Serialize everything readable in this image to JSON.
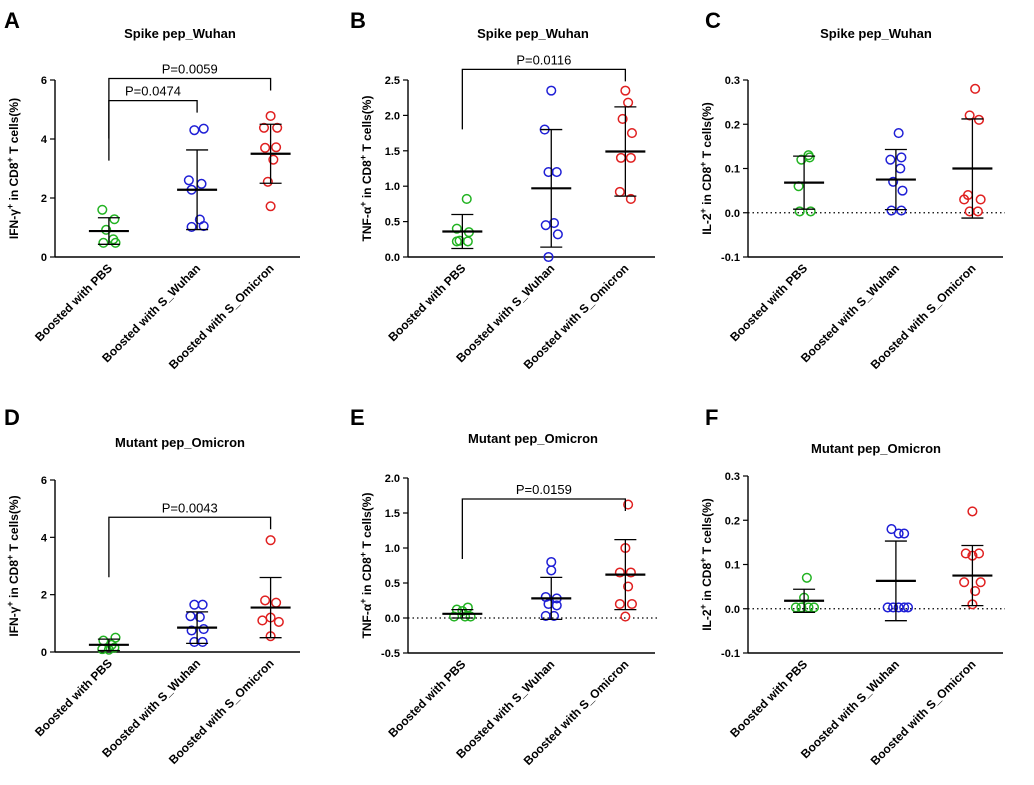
{
  "colors": {
    "PBS": "#22b322",
    "Wuhan": "#1f1fd6",
    "Omicron": "#e02020",
    "axis": "#000000"
  },
  "chart_data": [
    {
      "type": "scatter",
      "panel": "A",
      "title": "Spike pep_Wuhan",
      "ylabel": "IFN-γ⁺ in CD8⁺ T cells(%)",
      "ylim": [
        0,
        6
      ],
      "yticks": [
        0,
        2,
        4,
        6
      ],
      "yticklabels": [
        "0",
        "2",
        "4",
        "6"
      ],
      "zero_line": false,
      "categories": [
        "Boosted with PBS",
        "Boosted with S_Wuhan",
        "Boosted with S_Omicron"
      ],
      "series": [
        {
          "name": "PBS",
          "points": [
            [
              -0.12,
              1.6
            ],
            [
              0.1,
              1.28
            ],
            [
              -0.05,
              0.92
            ],
            [
              0.12,
              0.48
            ],
            [
              -0.1,
              0.48
            ],
            [
              0.08,
              0.6
            ]
          ],
          "mean": 0.88,
          "sd": 0.45
        },
        {
          "name": "Wuhan",
          "points": [
            [
              -0.05,
              4.3
            ],
            [
              0.12,
              4.35
            ],
            [
              -0.15,
              2.6
            ],
            [
              0.08,
              2.48
            ],
            [
              -0.1,
              2.28
            ],
            [
              0.05,
              1.27
            ],
            [
              -0.1,
              1.02
            ],
            [
              0.12,
              1.05
            ]
          ],
          "mean": 2.28,
          "sd": 1.35
        },
        {
          "name": "Omicron",
          "points": [
            [
              0.0,
              4.78
            ],
            [
              -0.12,
              4.38
            ],
            [
              0.12,
              4.38
            ],
            [
              -0.1,
              3.7
            ],
            [
              0.1,
              3.72
            ],
            [
              0.05,
              3.3
            ],
            [
              -0.05,
              2.55
            ],
            [
              0.0,
              1.72
            ]
          ],
          "mean": 3.5,
          "sd": 1.0
        }
      ],
      "comparisons": [
        {
          "from": 0,
          "to": 1,
          "label": "P=0.0474",
          "y": 5.3
        },
        {
          "from": 0,
          "to": 2,
          "label": "P=0.0059",
          "y": 6.05
        }
      ]
    },
    {
      "type": "scatter",
      "panel": "B",
      "title": "Spike pep_Wuhan",
      "ylabel": "TNF-α⁺ in CD8⁺ T cells(%)",
      "ylim": [
        0,
        2.5
      ],
      "yticks": [
        0,
        0.5,
        1.0,
        1.5,
        2.0,
        2.5
      ],
      "yticklabels": [
        "0.0",
        "0.5",
        "1.0",
        "1.5",
        "2.0",
        "2.5"
      ],
      "zero_line": false,
      "categories": [
        "Boosted with PBS",
        "Boosted with S_Wuhan",
        "Boosted with S_Omicron"
      ],
      "series": [
        {
          "name": "PBS",
          "points": [
            [
              0.08,
              0.82
            ],
            [
              -0.1,
              0.4
            ],
            [
              0.12,
              0.35
            ],
            [
              -0.05,
              0.23
            ],
            [
              0.1,
              0.22
            ],
            [
              -0.1,
              0.22
            ]
          ],
          "mean": 0.36,
          "sd": 0.24
        },
        {
          "name": "Wuhan",
          "points": [
            [
              0.0,
              2.35
            ],
            [
              -0.12,
              1.8
            ],
            [
              -0.05,
              1.2
            ],
            [
              0.1,
              1.2
            ],
            [
              0.05,
              0.48
            ],
            [
              -0.1,
              0.45
            ],
            [
              0.12,
              0.32
            ],
            [
              -0.05,
              0.0
            ]
          ],
          "mean": 0.97,
          "sd": 0.83
        },
        {
          "name": "Omicron",
          "points": [
            [
              0.0,
              2.35
            ],
            [
              0.05,
              2.18
            ],
            [
              -0.05,
              1.95
            ],
            [
              0.12,
              1.75
            ],
            [
              -0.08,
              1.4
            ],
            [
              0.1,
              1.4
            ],
            [
              -0.1,
              0.92
            ],
            [
              0.1,
              0.82
            ]
          ],
          "mean": 1.49,
          "sd": 0.63
        }
      ],
      "comparisons": [
        {
          "from": 0,
          "to": 2,
          "label": "P=0.0116",
          "y": 2.65
        }
      ]
    },
    {
      "type": "scatter",
      "panel": "C",
      "title": "Spike pep_Wuhan",
      "ylabel": "IL-2⁺ in CD8⁺ T cells(%)",
      "ylim": [
        -0.1,
        0.3
      ],
      "yticks": [
        -0.1,
        0.0,
        0.1,
        0.2,
        0.3
      ],
      "yticklabels": [
        "-0.1",
        "0.0",
        "0.1",
        "0.2",
        "0.3"
      ],
      "zero_line": true,
      "categories": [
        "Boosted with PBS",
        "Boosted with S_Wuhan",
        "Boosted with S_Omicron"
      ],
      "series": [
        {
          "name": "PBS",
          "points": [
            [
              0.08,
              0.13
            ],
            [
              -0.05,
              0.12
            ],
            [
              0.1,
              0.125
            ],
            [
              -0.1,
              0.06
            ],
            [
              -0.08,
              0.003
            ],
            [
              0.12,
              0.003
            ]
          ],
          "mean": 0.068,
          "sd": 0.06
        },
        {
          "name": "Wuhan",
          "points": [
            [
              0.05,
              0.18
            ],
            [
              -0.1,
              0.12
            ],
            [
              0.1,
              0.125
            ],
            [
              0.08,
              0.1
            ],
            [
              -0.05,
              0.07
            ],
            [
              0.12,
              0.05
            ],
            [
              -0.08,
              0.005
            ],
            [
              0.1,
              0.005
            ]
          ],
          "mean": 0.075,
          "sd": 0.068
        },
        {
          "name": "Omicron",
          "points": [
            [
              0.05,
              0.28
            ],
            [
              -0.05,
              0.22
            ],
            [
              0.12,
              0.21
            ],
            [
              -0.08,
              0.04
            ],
            [
              0.15,
              0.03
            ],
            [
              -0.15,
              0.03
            ],
            [
              -0.05,
              0.003
            ],
            [
              0.1,
              0.003
            ]
          ],
          "mean": 0.1,
          "sd": 0.112
        }
      ],
      "comparisons": []
    },
    {
      "type": "scatter",
      "panel": "D",
      "title": "Mutant pep_Omicron",
      "ylabel": "IFN-γ⁺ in CD8⁺ T cells(%)",
      "ylim": [
        0,
        6
      ],
      "yticks": [
        0,
        2,
        4,
        6
      ],
      "yticklabels": [
        "0",
        "2",
        "4",
        "6"
      ],
      "zero_line": false,
      "categories": [
        "Boosted with PBS",
        "Boosted with S_Wuhan",
        "Boosted with S_Omicron"
      ],
      "series": [
        {
          "name": "PBS",
          "points": [
            [
              0.12,
              0.5
            ],
            [
              -0.1,
              0.4
            ],
            [
              0.05,
              0.25
            ],
            [
              -0.12,
              0.1
            ],
            [
              0.1,
              0.15
            ],
            [
              0.0,
              0.08
            ]
          ],
          "mean": 0.25,
          "sd": 0.2
        },
        {
          "name": "Wuhan",
          "points": [
            [
              -0.05,
              1.65
            ],
            [
              0.1,
              1.65
            ],
            [
              -0.12,
              1.25
            ],
            [
              0.05,
              1.22
            ],
            [
              0.12,
              0.8
            ],
            [
              -0.1,
              0.75
            ],
            [
              -0.05,
              0.35
            ],
            [
              0.1,
              0.35
            ]
          ],
          "mean": 0.85,
          "sd": 0.55
        },
        {
          "name": "Omicron",
          "points": [
            [
              0.0,
              3.9
            ],
            [
              -0.1,
              1.8
            ],
            [
              0.1,
              1.72
            ],
            [
              0.0,
              1.2
            ],
            [
              -0.15,
              1.1
            ],
            [
              0.15,
              1.05
            ],
            [
              0.0,
              0.55
            ]
          ],
          "mean": 1.55,
          "sd": 1.05
        }
      ],
      "comparisons": [
        {
          "from": 0,
          "to": 2,
          "label": "P=0.0043",
          "y": 4.7
        }
      ]
    },
    {
      "type": "scatter",
      "panel": "E",
      "title": "Mutant pep_Omicron",
      "ylabel": "TNF-α⁺ in CD8⁺ T cells(%)",
      "ylim": [
        -0.5,
        2.0
      ],
      "yticks": [
        -0.5,
        0.0,
        0.5,
        1.0,
        1.5,
        2.0
      ],
      "yticklabels": [
        "-0.5",
        "0.0",
        "0.5",
        "1.0",
        "1.5",
        "2.0"
      ],
      "zero_line": true,
      "categories": [
        "Boosted with PBS",
        "Boosted with S_Wuhan",
        "Boosted with S_Omicron"
      ],
      "series": [
        {
          "name": "PBS",
          "points": [
            [
              -0.1,
              0.12
            ],
            [
              0.1,
              0.15
            ],
            [
              0.0,
              0.1
            ],
            [
              -0.15,
              0.02
            ],
            [
              0.05,
              0.02
            ],
            [
              0.15,
              0.02
            ]
          ],
          "mean": 0.06,
          "sd": 0.06
        },
        {
          "name": "Wuhan",
          "points": [
            [
              0.0,
              0.8
            ],
            [
              0.0,
              0.68
            ],
            [
              -0.1,
              0.3
            ],
            [
              0.1,
              0.28
            ],
            [
              -0.05,
              0.2
            ],
            [
              0.1,
              0.18
            ],
            [
              -0.1,
              0.03
            ],
            [
              0.05,
              0.03
            ]
          ],
          "mean": 0.28,
          "sd": 0.3
        },
        {
          "name": "Omicron",
          "points": [
            [
              0.05,
              1.62
            ],
            [
              0.0,
              1.0
            ],
            [
              -0.1,
              0.65
            ],
            [
              0.1,
              0.65
            ],
            [
              0.05,
              0.45
            ],
            [
              -0.1,
              0.2
            ],
            [
              0.12,
              0.2
            ],
            [
              0.0,
              0.02
            ]
          ],
          "mean": 0.62,
          "sd": 0.5
        }
      ],
      "comparisons": [
        {
          "from": 0,
          "to": 2,
          "label": "P=0.0159",
          "y": 1.7
        }
      ]
    },
    {
      "type": "scatter",
      "panel": "F",
      "title": "Mutant pep_Omicron",
      "ylabel": "IL-2⁺ in CD8⁺ T cells(%)",
      "ylim": [
        -0.1,
        0.3
      ],
      "yticks": [
        -0.1,
        0.0,
        0.1,
        0.2,
        0.3
      ],
      "yticklabels": [
        "-0.1",
        "0.0",
        "0.1",
        "0.2",
        "0.3"
      ],
      "zero_line": true,
      "categories": [
        "Boosted with PBS",
        "Boosted with S_Wuhan",
        "Boosted with S_Omicron"
      ],
      "series": [
        {
          "name": "PBS",
          "points": [
            [
              0.05,
              0.07
            ],
            [
              0.0,
              0.025
            ],
            [
              -0.15,
              0.003
            ],
            [
              -0.05,
              0.003
            ],
            [
              0.08,
              0.003
            ],
            [
              0.18,
              0.003
            ]
          ],
          "mean": 0.018,
          "sd": 0.026
        },
        {
          "name": "Wuhan",
          "points": [
            [
              -0.08,
              0.18
            ],
            [
              0.05,
              0.17
            ],
            [
              0.15,
              0.17
            ],
            [
              -0.15,
              0.003
            ],
            [
              -0.05,
              0.003
            ],
            [
              0.05,
              0.003
            ],
            [
              0.15,
              0.003
            ],
            [
              0.22,
              0.003
            ]
          ],
          "mean": 0.063,
          "sd": 0.09
        },
        {
          "name": "Omicron",
          "points": [
            [
              0.0,
              0.22
            ],
            [
              -0.12,
              0.125
            ],
            [
              0.0,
              0.12
            ],
            [
              0.12,
              0.125
            ],
            [
              -0.15,
              0.06
            ],
            [
              0.15,
              0.06
            ],
            [
              0.05,
              0.04
            ],
            [
              0.0,
              0.01
            ]
          ],
          "mean": 0.075,
          "sd": 0.068
        }
      ],
      "comparisons": []
    }
  ]
}
